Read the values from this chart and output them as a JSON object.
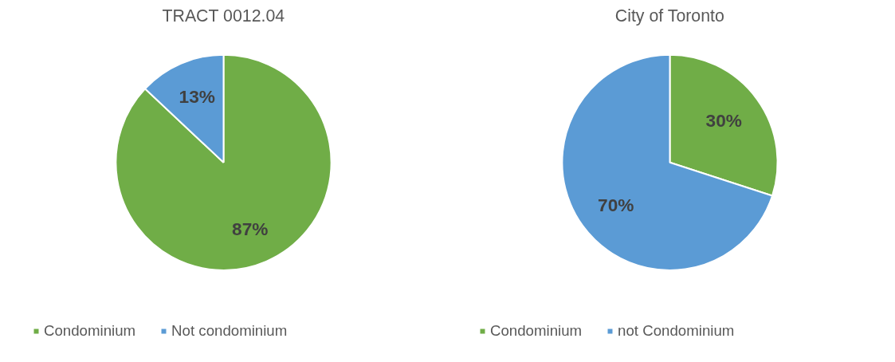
{
  "chart_data": [
    {
      "type": "pie",
      "title": "TRACT 0012.04",
      "categories": [
        "Condominium",
        "Not condominium"
      ],
      "values": [
        87,
        13
      ],
      "colors": [
        "#70ad47",
        "#5b9bd5"
      ],
      "value_labels": [
        "87%",
        "13%"
      ],
      "legend": "bottom"
    },
    {
      "type": "pie",
      "title": "City of Toronto",
      "categories": [
        "Condominium",
        "not Condominium"
      ],
      "values": [
        30,
        70
      ],
      "colors": [
        "#70ad47",
        "#5b9bd5"
      ],
      "value_labels": [
        "30%",
        "70%"
      ],
      "legend": "bottom"
    }
  ]
}
